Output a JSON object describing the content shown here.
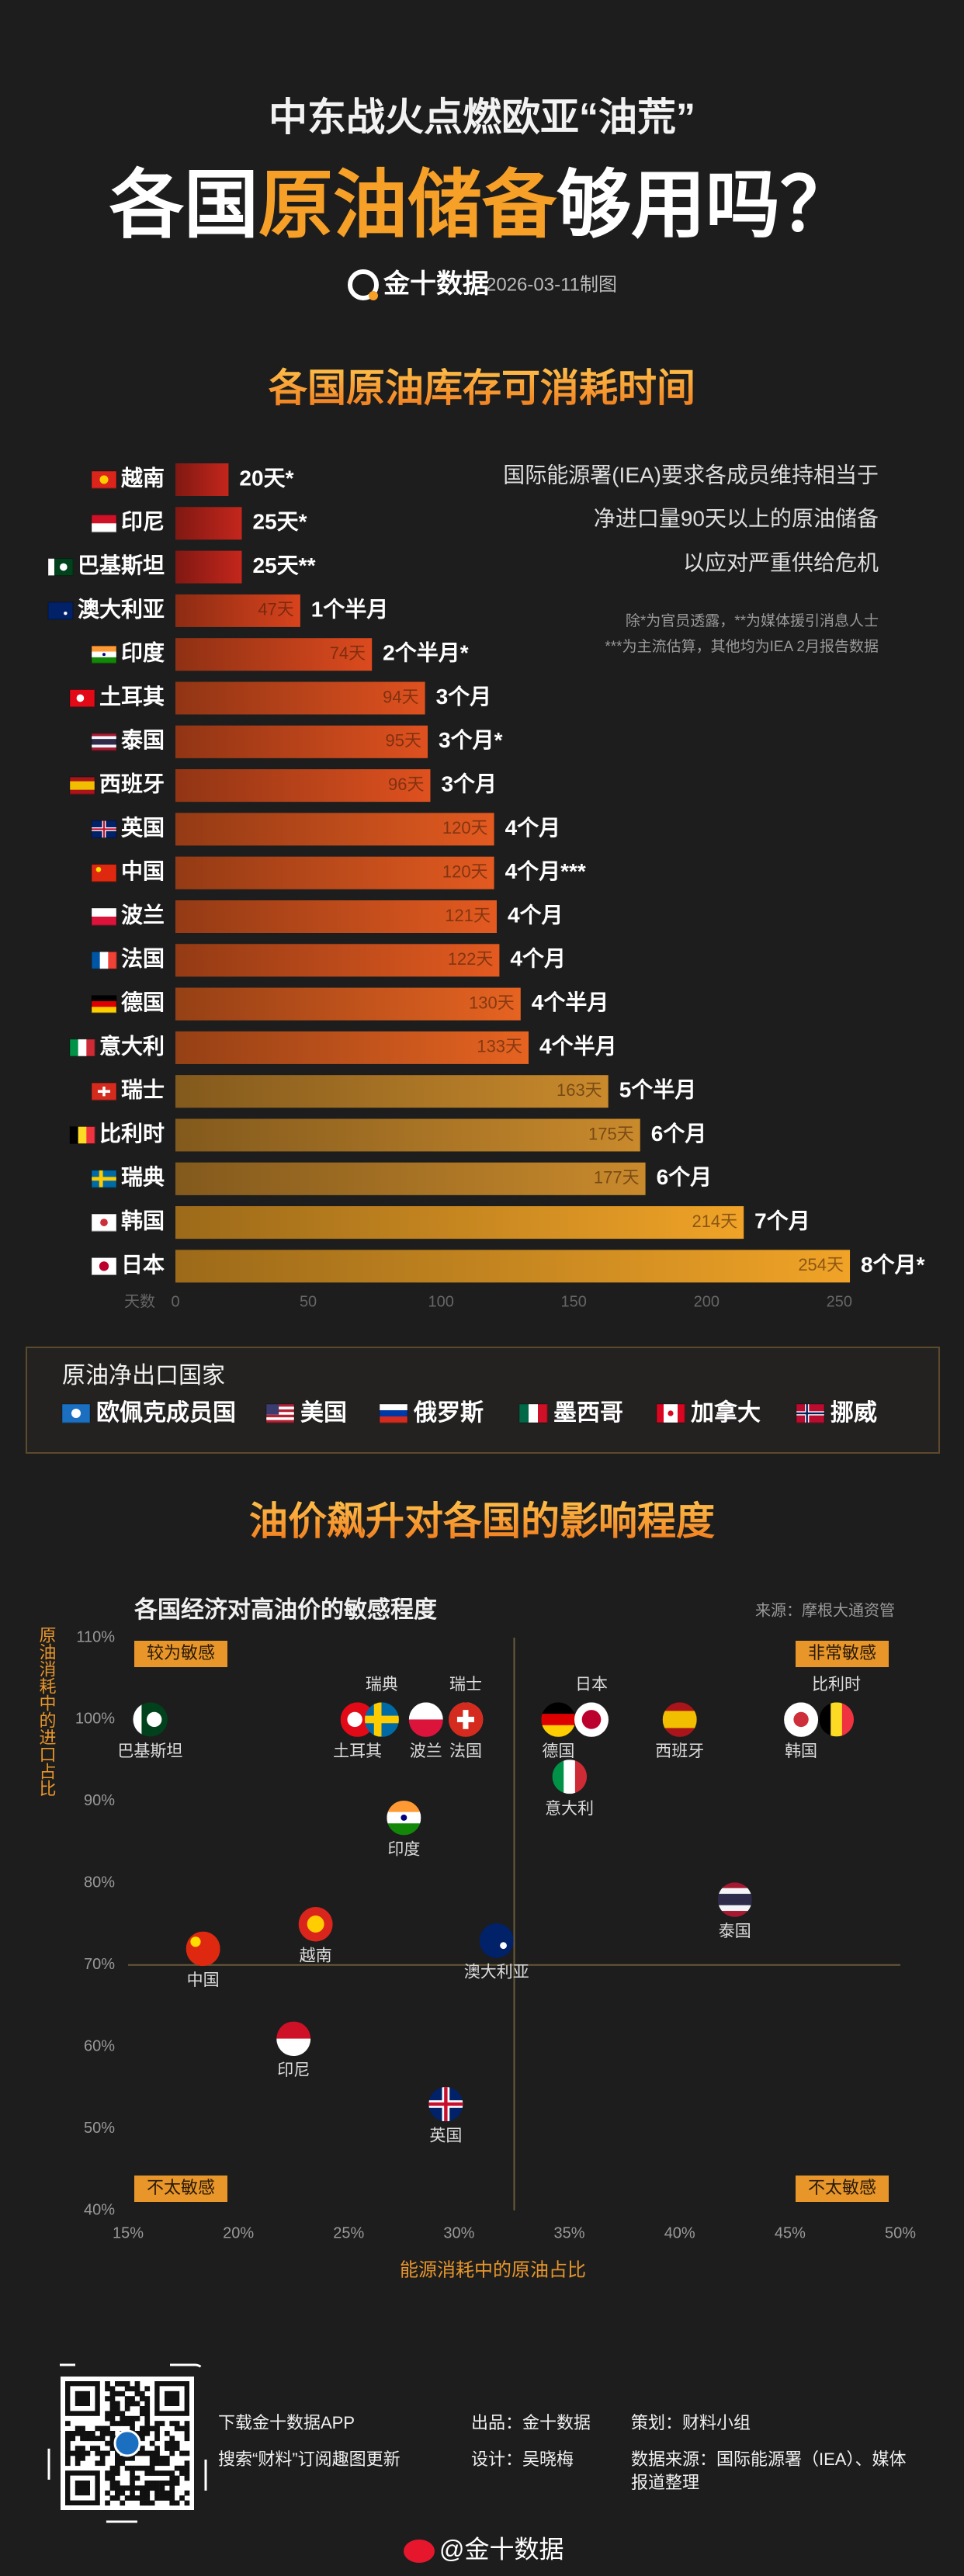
{
  "header": {
    "subtitle": "中东战火点燃欧亚“油荒”",
    "title": [
      "各国",
      "原油储备",
      "够用吗？"
    ],
    "brand": "金十数据",
    "date": "2026-03-11制图"
  },
  "chart_data": [
    {
      "type": "bar",
      "orientation": "horizontal",
      "title": "各国原油库存可消耗时间",
      "categories": [
        "越南",
        "印尼",
        "巴基斯坦",
        "澳大利亚",
        "印度",
        "土耳其",
        "泰国",
        "西班牙",
        "英国",
        "中国",
        "波兰",
        "法国",
        "德国",
        "意大利",
        "瑞士",
        "比利时",
        "瑞典",
        "韩国",
        "日本"
      ],
      "values": [
        20,
        25,
        25,
        47,
        74,
        94,
        95,
        96,
        120,
        120,
        121,
        122,
        130,
        133,
        163,
        175,
        177,
        214,
        254
      ],
      "value_labels": [
        "20天*",
        "25天*",
        "25天**",
        "47天",
        "74天",
        "94天",
        "95天",
        "96天",
        "120天",
        "120天",
        "121天",
        "122天",
        "130天",
        "133天",
        "163天",
        "175天",
        "177天",
        "214天",
        "254天"
      ],
      "month_labels": [
        null,
        null,
        null,
        "1个半月",
        "2个半月*",
        "3个月",
        "3个月*",
        "3个月",
        "4个月",
        "4个月***",
        "4个月",
        "4个月",
        "4个半月",
        "4个半月",
        "5个半月",
        "6个月",
        "6个月",
        "7个月",
        "8个月*"
      ],
      "colors": [
        "#c4261c",
        "#c4261c",
        "#c4261c",
        "#d8431d",
        "#dc4a1e",
        "#df511f",
        "#df511f",
        "#df511f",
        "#e35a20",
        "#e35a20",
        "#e35a20",
        "#e35a20",
        "#e66321",
        "#e66321",
        "#c98a2c",
        "#c98a2c",
        "#c98a2c",
        "#f0a327",
        "#f0a327"
      ],
      "xlabel": "天数",
      "xlim": [
        0,
        280
      ],
      "xticks": [
        0,
        50,
        100,
        150,
        200,
        250
      ],
      "annotations": [
        "国际能源署(IEA)要求各成员维持相当于",
        "净进口量90天以上的原油储备",
        "以应对严重供给危机"
      ],
      "notes": [
        "除*为官员透露，**为媒体援引消息人士",
        "***为主流估算，其他均为IEA 2月报告数据"
      ]
    },
    {
      "type": "scatter",
      "heading": "油价飙升对各国的影响程度",
      "title": "各国经济对高油价的敏感程度",
      "source": "来源：摩根大通资管",
      "xlabel": "能源消耗中的原油占比",
      "ylabel": "原油消耗中的进口占比",
      "names": [
        "巴基斯坦",
        "土耳其",
        "瑞典",
        "波兰",
        "法国",
        "瑞士",
        "德国",
        "日本",
        "意大利",
        "西班牙",
        "韩国",
        "比利时",
        "印度",
        "泰国",
        "中国",
        "越南",
        "澳大利亚",
        "印尼",
        "英国"
      ],
      "x": [
        16.0,
        25.4,
        26.5,
        28.5,
        30.3,
        30.3,
        34.5,
        36.0,
        35.0,
        40.0,
        45.5,
        47.1,
        27.5,
        42.5,
        18.4,
        23.5,
        31.7,
        22.5,
        29.4
      ],
      "y": [
        100,
        100,
        100,
        100,
        100,
        100,
        100,
        100,
        93,
        100,
        100,
        100,
        88,
        78,
        72,
        75,
        73,
        61,
        53
      ],
      "xlim": [
        15,
        50
      ],
      "ylim": [
        40,
        110
      ],
      "xticks": [
        {
          "value": 15,
          "label": "15%"
        },
        {
          "value": 20,
          "label": "20%"
        },
        {
          "value": 25,
          "label": "25%"
        },
        {
          "value": 30,
          "label": "30%"
        },
        {
          "value": 35,
          "label": "35%"
        },
        {
          "value": 40,
          "label": "40%"
        },
        {
          "value": 45,
          "label": "45%"
        },
        {
          "value": 50,
          "label": "50%"
        }
      ],
      "yticks": [
        {
          "value": 40,
          "label": "40%"
        },
        {
          "value": 50,
          "label": "50%"
        },
        {
          "value": 60,
          "label": "60%"
        },
        {
          "value": 70,
          "label": "70%"
        },
        {
          "value": 80,
          "label": "80%"
        },
        {
          "value": 90,
          "label": "90%"
        },
        {
          "value": 100,
          "label": "100%"
        },
        {
          "value": 110,
          "label": "110%"
        }
      ],
      "quadrant_lines": {
        "x": 32.5,
        "y": 70
      },
      "quadrant_labels": [
        "较为敏感",
        "非常敏感",
        "不太敏感",
        "不太敏感"
      ]
    }
  ],
  "legend": {
    "title": "原油净出口国家",
    "items": [
      "欧佩克成员国",
      "美国",
      "俄罗斯",
      "墨西哥",
      "加拿大",
      "挪威"
    ]
  },
  "footer": {
    "app": "下载金十数据APP",
    "subscribe": "搜索“财料”订阅趣图更新",
    "producer": "出品：金十数据",
    "designer": "设计：吴晓梅",
    "planner": "策划：财料小组",
    "source": [
      "数据来源：国际能源署（IEA）、媒体",
      "报道整理"
    ],
    "weibo": "@金十数据"
  }
}
